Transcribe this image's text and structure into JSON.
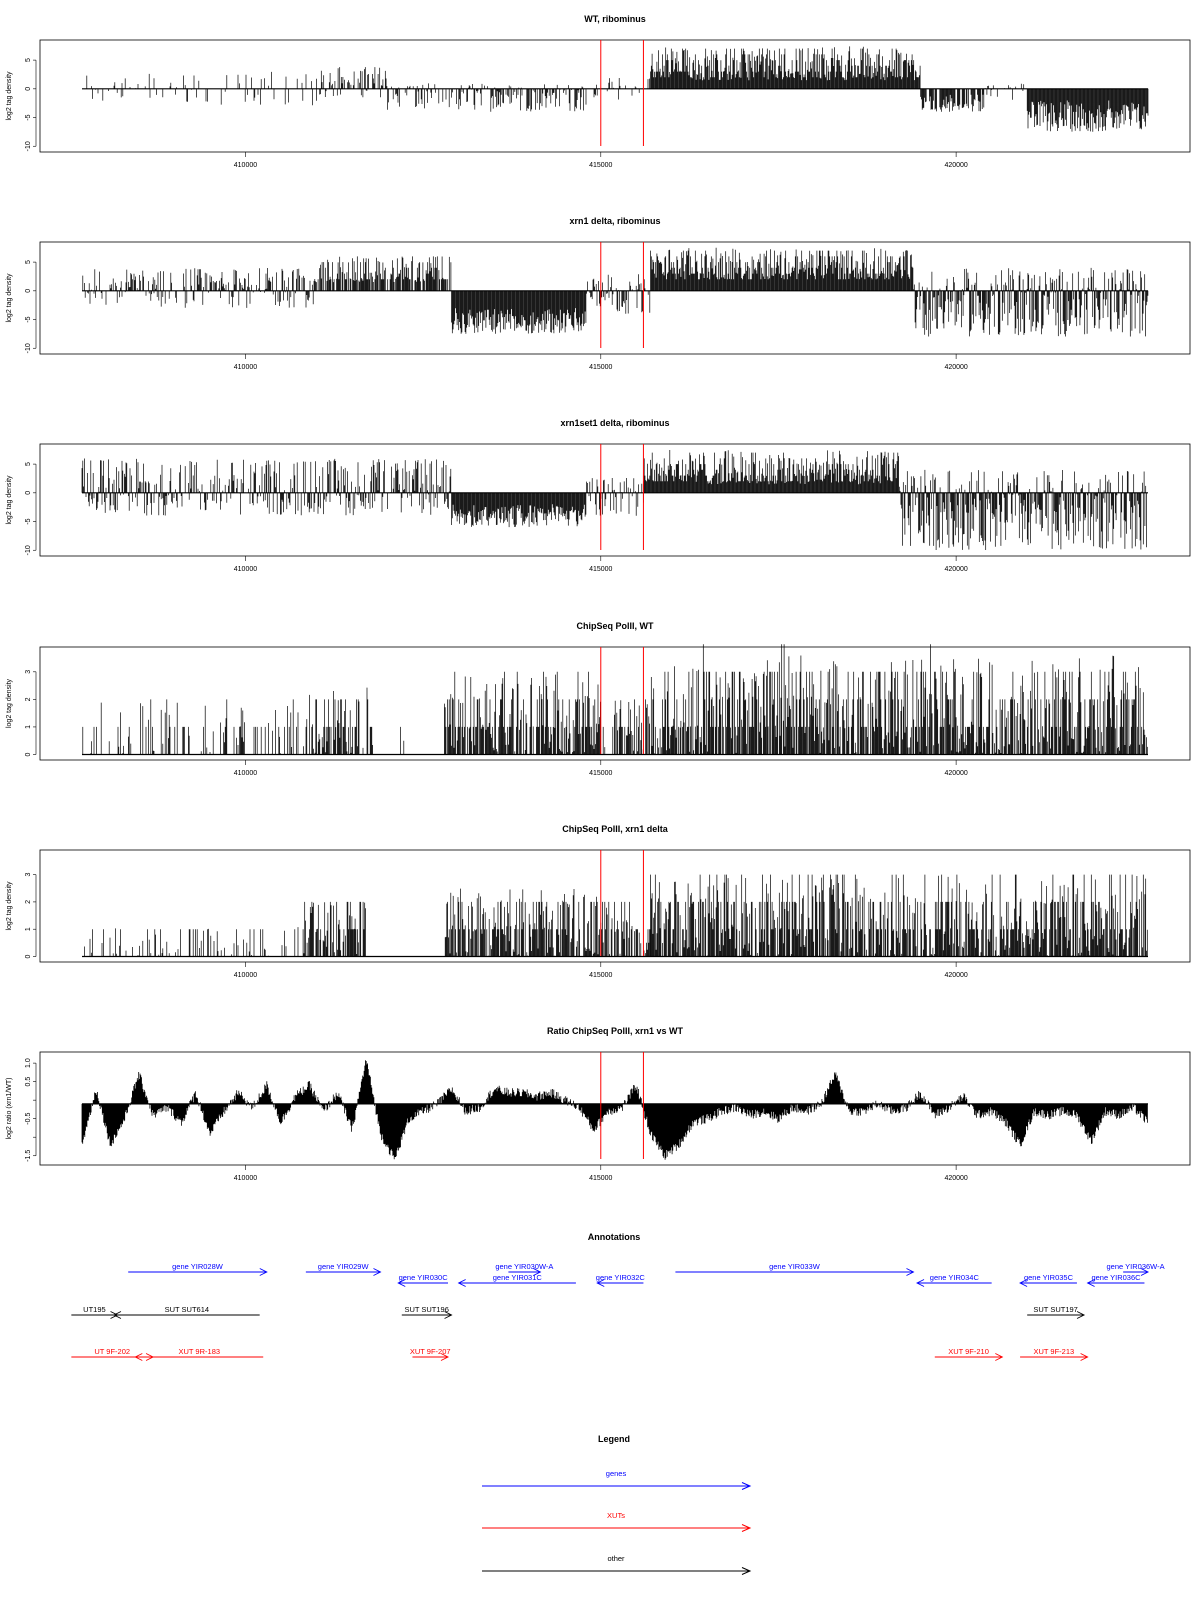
{
  "figure": {
    "x_domain": [
      407700,
      422700
    ],
    "x_ticks": [
      410000,
      415000,
      420000
    ],
    "marker_lines": [
      415000,
      415600
    ],
    "marker_color": "#ff0000",
    "bar_color": "#000000"
  },
  "chart_data": [
    {
      "type": "bar",
      "title": "WT, ribominus",
      "ylabel": "log2 tag density",
      "ylim": [
        -11,
        8.5
      ],
      "yticks": [
        -10,
        -5,
        0,
        5
      ],
      "baseline": 0,
      "segments": [
        {
          "x": [
            407700,
            411000
          ],
          "min": -3,
          "max": 3,
          "density": 0.28
        },
        {
          "x": [
            411000,
            412000
          ],
          "min": -1.5,
          "max": 4,
          "density": 0.5
        },
        {
          "x": [
            412000,
            415000
          ],
          "min": -4,
          "max": 1,
          "density": 0.55
        },
        {
          "x": [
            415000,
            415700
          ],
          "min": -2,
          "max": 2,
          "density": 0.25
        },
        {
          "x": [
            415700,
            419500
          ],
          "min": 1.5,
          "max": 7.5,
          "density": 1.0
        },
        {
          "x": [
            419500,
            420400
          ],
          "min": -4,
          "max": -1,
          "density": 0.75
        },
        {
          "x": [
            420400,
            421000
          ],
          "min": -2,
          "max": 1,
          "density": 0.3
        },
        {
          "x": [
            421000,
            422700
          ],
          "min": -7.5,
          "max": -2,
          "density": 1.0
        }
      ]
    },
    {
      "type": "bar",
      "title": "xrn1 delta, ribominus",
      "ylabel": "log2 tag density",
      "ylim": [
        -11,
        8.5
      ],
      "yticks": [
        -10,
        -5,
        0,
        5
      ],
      "baseline": 0,
      "segments": [
        {
          "x": [
            407700,
            411000
          ],
          "min": -3,
          "max": 4,
          "density": 0.65
        },
        {
          "x": [
            411000,
            412900
          ],
          "min": 1.5,
          "max": 6,
          "density": 0.85
        },
        {
          "x": [
            412900,
            414800
          ],
          "min": -7.5,
          "max": -3,
          "density": 1.0
        },
        {
          "x": [
            414800,
            415700
          ],
          "min": -4,
          "max": 3,
          "density": 0.65
        },
        {
          "x": [
            415700,
            419400
          ],
          "min": 2,
          "max": 7.5,
          "density": 1.0
        },
        {
          "x": [
            419400,
            422700
          ],
          "min": -8,
          "max": 4,
          "density": 0.95
        }
      ]
    },
    {
      "type": "bar",
      "title": "xrn1set1 delta, ribominus",
      "ylabel": "log2 tag density",
      "ylim": [
        -11,
        8.5
      ],
      "yticks": [
        -10,
        -5,
        0,
        5
      ],
      "baseline": 0,
      "segments": [
        {
          "x": [
            407700,
            412900
          ],
          "min": -4,
          "max": 6,
          "density": 0.75
        },
        {
          "x": [
            412900,
            414800
          ],
          "min": -6,
          "max": -2,
          "density": 1.0
        },
        {
          "x": [
            414800,
            415600
          ],
          "min": -4,
          "max": 3,
          "density": 0.65
        },
        {
          "x": [
            415600,
            419200
          ],
          "min": 1.5,
          "max": 7.5,
          "density": 1.0
        },
        {
          "x": [
            419200,
            422700
          ],
          "min": -10,
          "max": 4,
          "density": 0.95
        }
      ]
    },
    {
      "type": "bar",
      "title": "ChipSeq PolII, WT",
      "ylabel": "log2 tag density",
      "ylim": [
        -0.2,
        3.9
      ],
      "yticks": [
        0,
        1,
        2,
        3
      ],
      "baseline": 0,
      "segments": [
        {
          "x": [
            407700,
            410900
          ],
          "min": 0,
          "max": 1.9,
          "density": 0.35
        },
        {
          "x": [
            410900,
            411800
          ],
          "min": 0,
          "max": 2.5,
          "density": 0.85
        },
        {
          "x": [
            411800,
            412800
          ],
          "min": 0,
          "max": 1,
          "density": 0.12
        },
        {
          "x": [
            412800,
            415000
          ],
          "min": 0,
          "max": 2.9,
          "density": 1.0
        },
        {
          "x": [
            415000,
            415700
          ],
          "min": 0,
          "max": 2,
          "density": 0.6
        },
        {
          "x": [
            415700,
            422700
          ],
          "min": 0,
          "max": 3.6,
          "density": 1.0
        }
      ]
    },
    {
      "type": "bar",
      "title": "ChipSeq PolII, xrn1 delta",
      "ylabel": "log2 tag density",
      "ylim": [
        -0.2,
        3.9
      ],
      "yticks": [
        0,
        1,
        2,
        3
      ],
      "baseline": 0,
      "segments": [
        {
          "x": [
            407700,
            410800
          ],
          "min": 0,
          "max": 1.1,
          "density": 0.35
        },
        {
          "x": [
            410800,
            411700
          ],
          "min": 0,
          "max": 2.0,
          "density": 0.95
        },
        {
          "x": [
            411700,
            412800
          ],
          "min": 0,
          "max": 0.4,
          "density": 0.05
        },
        {
          "x": [
            412800,
            415000
          ],
          "min": 0,
          "max": 2.5,
          "density": 1.0
        },
        {
          "x": [
            415000,
            415700
          ],
          "min": 0,
          "max": 2,
          "density": 0.7
        },
        {
          "x": [
            415700,
            422700
          ],
          "min": 0,
          "max": 3.0,
          "density": 0.95
        }
      ]
    },
    {
      "type": "area",
      "title": "Ratio ChipSeq PolII, xrn1 vs WT",
      "ylabel": "log2 ratio (xrn1/WT)",
      "ylim": [
        -1.75,
        1.3
      ],
      "yticks": [
        -1.5,
        -1.0,
        -0.5,
        0.0,
        0.5,
        1.0
      ],
      "ytick_labels": [
        "-1.5",
        "",
        "-0.5",
        "",
        "0.5",
        "1.0"
      ],
      "baseline": -0.1,
      "x": [
        407700,
        407900,
        408100,
        408300,
        408500,
        408700,
        408900,
        409100,
        409300,
        409500,
        409700,
        409900,
        410100,
        410300,
        410500,
        410700,
        410900,
        411100,
        411300,
        411500,
        411700,
        411900,
        412100,
        412300,
        412500,
        412700,
        412900,
        413100,
        413300,
        413500,
        413700,
        413900,
        414100,
        414300,
        414500,
        414700,
        414900,
        415100,
        415300,
        415500,
        415700,
        415900,
        416100,
        416300,
        416500,
        416700,
        416900,
        417100,
        417300,
        417500,
        417700,
        417900,
        418100,
        418300,
        418500,
        418700,
        418900,
        419100,
        419300,
        419500,
        419700,
        419900,
        420100,
        420300,
        420500,
        420700,
        420900,
        421100,
        421300,
        421500,
        421700,
        421900,
        422100,
        422300,
        422500,
        422700
      ],
      "y": [
        -1.2,
        0.3,
        -1.2,
        -0.5,
        0.7,
        -0.4,
        -0.2,
        -0.6,
        0.2,
        -0.9,
        -0.3,
        0.2,
        -0.2,
        0.4,
        -0.6,
        0.1,
        0.4,
        -0.3,
        0.2,
        -0.8,
        1.1,
        -0.9,
        -1.6,
        -0.5,
        -0.3,
        -0.1,
        0.3,
        -0.3,
        -0.2,
        0.3,
        0.2,
        0.2,
        0.1,
        0.2,
        0.0,
        -0.2,
        -0.8,
        -0.3,
        -0.2,
        0.4,
        -0.9,
        -1.5,
        -1.2,
        -0.6,
        -0.5,
        -0.3,
        -0.2,
        -0.4,
        -0.3,
        -0.5,
        -0.2,
        -0.3,
        -0.1,
        0.7,
        -0.3,
        -0.3,
        -0.1,
        -0.3,
        -0.2,
        0.2,
        -0.4,
        -0.2,
        0.1,
        -0.4,
        -0.3,
        -0.6,
        -1.2,
        -0.3,
        -0.4,
        -0.3,
        -0.4,
        -1.1,
        -0.3,
        -0.4,
        -0.2,
        -0.6
      ]
    }
  ],
  "annotations": {
    "title": "Annotations",
    "rows": [
      [
        {
          "label": "gene YIR028W",
          "x1": 408350,
          "x2": 410300,
          "dir": 1,
          "color": "#0000ff"
        },
        {
          "label": "gene YIR029W",
          "x1": 410850,
          "x2": 411900,
          "dir": 1,
          "color": "#0000ff"
        },
        {
          "label": "gene YIR030W-A",
          "x1": 413700,
          "x2": 414150,
          "dir": 1,
          "color": "#0000ff"
        },
        {
          "label": "gene YIR033W",
          "x1": 416050,
          "x2": 419400,
          "dir": 1,
          "color": "#0000ff"
        },
        {
          "label": "gene YIR036W-A",
          "x1": 422350,
          "x2": 422700,
          "dir": 1,
          "color": "#0000ff"
        }
      ],
      [
        {
          "label": "gene YIR030C",
          "x1": 412150,
          "x2": 412850,
          "dir": -1,
          "color": "#0000ff"
        },
        {
          "label": "gene YIR031C",
          "x1": 413000,
          "x2": 414650,
          "dir": -1,
          "color": "#0000ff"
        },
        {
          "label": "gene YIR032C",
          "x1": 414950,
          "x2": 415600,
          "dir": -1,
          "color": "#0000ff"
        },
        {
          "label": "gene YIR034C",
          "x1": 419450,
          "x2": 420500,
          "dir": -1,
          "color": "#0000ff"
        },
        {
          "label": "gene YIR035C",
          "x1": 420900,
          "x2": 421700,
          "dir": -1,
          "color": "#0000ff"
        },
        {
          "label": "gene YIR036C",
          "x1": 421850,
          "x2": 422650,
          "dir": -1,
          "color": "#0000ff"
        }
      ],
      [
        {
          "label": "UT195",
          "x1": 407550,
          "x2": 408200,
          "dir": 1,
          "color": "#000000"
        },
        {
          "label": "SUT SUT614",
          "x1": 408150,
          "x2": 410200,
          "dir": -1,
          "color": "#000000"
        },
        {
          "label": "SUT SUT196",
          "x1": 412200,
          "x2": 412900,
          "dir": 1,
          "color": "#000000"
        },
        {
          "label": "SUT SUT197",
          "x1": 421000,
          "x2": 421800,
          "dir": 1,
          "color": "#000000"
        }
      ],
      [
        {
          "label": "UT 9F-202",
          "x1": 407550,
          "x2": 408700,
          "dir": 1,
          "color": "#ff0000"
        },
        {
          "label": "XUT 9R-183",
          "x1": 408450,
          "x2": 410250,
          "dir": -1,
          "color": "#ff0000"
        },
        {
          "label": "XUT 9F-207",
          "x1": 412350,
          "x2": 412850,
          "dir": 1,
          "color": "#ff0000"
        },
        {
          "label": "XUT 9F-210",
          "x1": 419700,
          "x2": 420650,
          "dir": 1,
          "color": "#ff0000"
        },
        {
          "label": "XUT 9F-213",
          "x1": 420900,
          "x2": 421850,
          "dir": 1,
          "color": "#ff0000"
        }
      ]
    ]
  },
  "legend": {
    "title": "Legend",
    "items": [
      {
        "label": "genes",
        "color": "#0000ff"
      },
      {
        "label": "XUTs",
        "color": "#ff0000"
      },
      {
        "label": "other",
        "color": "#000000"
      }
    ]
  }
}
